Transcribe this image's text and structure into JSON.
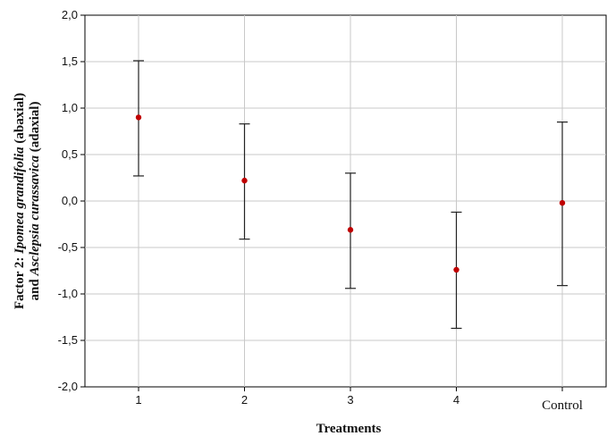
{
  "chart_data": {
    "type": "scatter",
    "categories": [
      "1",
      "2",
      "3",
      "4",
      "Control"
    ],
    "series": [
      {
        "values": [
          0.9,
          0.22,
          -0.31,
          -0.74,
          -0.02
        ],
        "error_low": [
          0.27,
          -0.41,
          -0.94,
          -1.37,
          -0.91
        ],
        "error_high": [
          1.51,
          0.83,
          0.3,
          -0.12,
          0.85
        ],
        "color": "#c00000"
      }
    ],
    "ylim": [
      -2.0,
      2.0
    ],
    "yticks": [
      "2,0",
      "1,5",
      "1,0",
      "0,5",
      "0,0",
      "-0,5",
      "-1,0",
      "-1,5",
      "-2,0"
    ],
    "xlabel": "Treatments",
    "ylabel_parts": {
      "line1_prefix": "Factor 2: ",
      "line1_italic": "Ipomea grandifolia",
      "line1_suffix": " (abaxial)",
      "line2_prefix": "and ",
      "line2_italic": "Asclepsia curassavica",
      "line2_suffix": " (adaxial)"
    },
    "grid": true,
    "colors": {
      "marker": "#c00000",
      "errorbar": "#222222",
      "grid": "#c8c8c8",
      "axis": "#000000"
    }
  }
}
